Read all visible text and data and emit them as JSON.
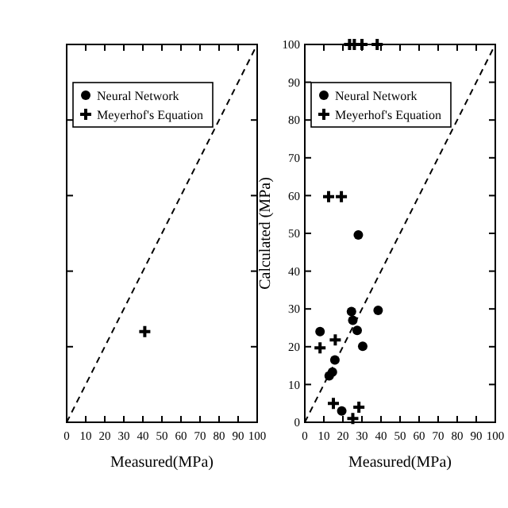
{
  "chart_data": [
    {
      "type": "scatter",
      "xlabel": "Measured(MPa)",
      "xlim": [
        0,
        100
      ],
      "ylim": [
        0,
        100
      ],
      "xticks": [
        0,
        10,
        20,
        30,
        40,
        50,
        60,
        70,
        80,
        90,
        100
      ],
      "yticks": [
        {
          "value": 0,
          "label": null
        },
        {
          "value": 20,
          "label": null
        },
        {
          "value": 40,
          "label": null
        },
        {
          "value": 60,
          "label": null
        },
        {
          "value": 80,
          "label": null
        },
        {
          "value": 100,
          "label": null
        }
      ],
      "tick_labels": "x",
      "legend": "top left",
      "series": [
        {
          "name": "Neural Network",
          "color": "#000000",
          "marker": "circle"
        },
        {
          "name": "Meyerhof's Equation",
          "color": "#000000",
          "marker": "cross",
          "x": [
            41
          ],
          "values": [
            24
          ]
        },
        {
          "type": "line",
          "color": "#000000",
          "line_style": "dashed",
          "marker": "none",
          "x": [
            0,
            100
          ],
          "values": [
            0,
            100
          ]
        }
      ]
    },
    {
      "type": "scatter",
      "xlabel": "Measured(MPa)",
      "ylabel": "Calculated (MPa)",
      "xlim": [
        0,
        100
      ],
      "ylim": [
        0,
        100
      ],
      "xticks": [
        0,
        10,
        20,
        30,
        40,
        50,
        60,
        70,
        80,
        90,
        100
      ],
      "yticks": [
        0,
        10,
        20,
        30,
        40,
        50,
        60,
        70,
        80,
        90,
        100
      ],
      "legend": "top left",
      "series": [
        {
          "name": "Neural Network",
          "color": "#000000",
          "marker": "circle",
          "x": [
            8,
            12.8,
            14.5,
            15.8,
            19.4,
            24.5,
            25.2,
            27.5,
            28.1,
            30.4,
            38.5
          ],
          "values": [
            24,
            12.3,
            13.3,
            16.5,
            3,
            29.3,
            27,
            24.3,
            49.6,
            20.1,
            29.6
          ]
        },
        {
          "name": "Meyerhof's Equation",
          "color": "#000000",
          "marker": "cross",
          "x": [
            8,
            12.5,
            19.2,
            16,
            15,
            25.2,
            28.4,
            23.5,
            26,
            30,
            38
          ],
          "values": [
            19.7,
            59.7,
            59.7,
            21.8,
            5,
            1,
            4,
            100,
            100,
            100,
            100
          ]
        },
        {
          "type": "line",
          "color": "#000000",
          "line_style": "dashed",
          "marker": "none",
          "x": [
            0,
            100
          ],
          "values": [
            0,
            100
          ]
        }
      ]
    }
  ]
}
